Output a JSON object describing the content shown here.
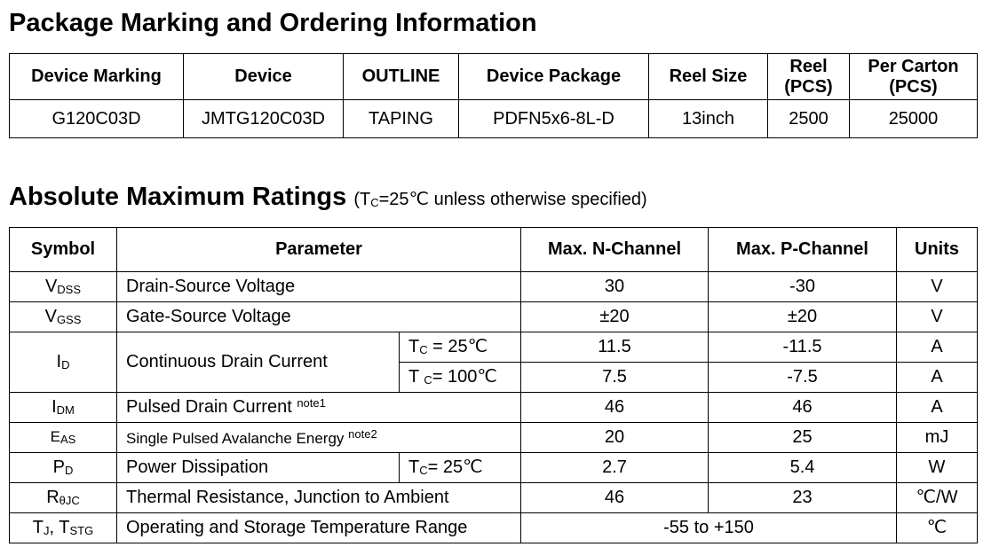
{
  "ordering": {
    "title": "Package Marking and Ordering Information",
    "headers": {
      "marking": "Device Marking",
      "device": "Device",
      "outline": "OUTLINE",
      "package": "Device Package",
      "reel_size": "Reel Size",
      "reel_pcs_1": "Reel",
      "reel_pcs_2": "(PCS)",
      "carton_1": "Per Carton",
      "carton_2": "(PCS)"
    },
    "row": {
      "marking": "G120C03D",
      "device": "JMTG120C03D",
      "outline": "TAPING",
      "package": "PDFN5x6-8L-D",
      "reel_size": "13inch",
      "reel_pcs": "2500",
      "carton": "25000"
    }
  },
  "ratings": {
    "title": "Absolute Maximum Ratings",
    "condition": {
      "open": "(T",
      "sub": "C",
      "rest": "=25℃ unless otherwise specified)"
    },
    "headers": {
      "symbol": "Symbol",
      "parameter": "Parameter",
      "n_channel": "Max. N-Channel",
      "p_channel": "Max. P-Channel",
      "units": "Units"
    },
    "rows": {
      "vdss": {
        "sym": "V",
        "sub": "DSS",
        "param": "Drain-Source Voltage",
        "n": "30",
        "p": "-30",
        "unit": "V"
      },
      "vgss": {
        "sym": "V",
        "sub": "GSS",
        "param": "Gate-Source Voltage",
        "n": "±20",
        "p": "±20",
        "unit": "V"
      },
      "id": {
        "sym": "I",
        "sub": "D",
        "param": "Continuous Drain Current",
        "cond1_t": "T",
        "cond1_sub": "C",
        "cond1_rest": " = 25℃",
        "n1": "11.5",
        "p1": "-11.5",
        "unit1": "A",
        "cond2_t": "T ",
        "cond2_sub": "C",
        "cond2_rest": "= 100℃",
        "n2": "7.5",
        "p2": "-7.5",
        "unit2": "A"
      },
      "idm": {
        "sym": "I",
        "sub": "DM",
        "param": "Pulsed Drain Current ",
        "note": "note1",
        "n": "46",
        "p": "46",
        "unit": "A"
      },
      "eas": {
        "sym": "E",
        "sub": "AS",
        "param": "Single Pulsed Avalanche Energy ",
        "note": "note2",
        "n": "20",
        "p": "25",
        "unit": "mJ"
      },
      "pd": {
        "sym": "P",
        "sub": "D",
        "param": "Power Dissipation",
        "cond_t": "T",
        "cond_sub": "C",
        "cond_rest": "= 25℃",
        "n": "2.7",
        "p": "5.4",
        "unit": "W"
      },
      "rth": {
        "sym": "R",
        "sub": "θJC",
        "param": "Thermal Resistance, Junction to Ambient",
        "n": "46",
        "p": "23",
        "unit": "℃/W"
      },
      "tj": {
        "sym1": "T",
        "sub1": "J",
        "sep": ", T",
        "sub2": "STG",
        "param": "Operating and Storage Temperature Range",
        "value": "-55 to +150",
        "unit": "℃"
      }
    }
  }
}
